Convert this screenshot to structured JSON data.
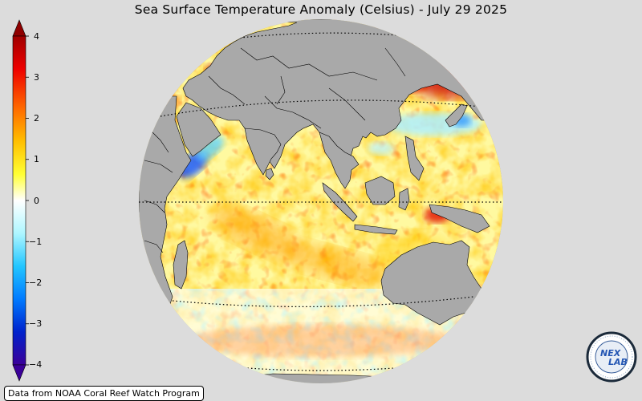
{
  "title": "Sea Surface Temperature Anomaly (Celsius) - July 29 2025",
  "colorbar": {
    "ticks": [
      "4",
      "3",
      "2",
      "1",
      "0",
      "−1",
      "−2",
      "−3",
      "−4"
    ],
    "range": [
      -4,
      4
    ],
    "colors": [
      "#3b0099",
      "#0033ff",
      "#00aaff",
      "#aaf5ff",
      "#ffffff",
      "#ffff66",
      "#ffb300",
      "#ff2200",
      "#a00000"
    ]
  },
  "map": {
    "projection": "orthographic",
    "land_color": "#a9a9a9",
    "coast_color": "#000000"
  },
  "credit": "Data from NOAA Coral Reef Watch Program",
  "logo": {
    "text": "NEX LAB"
  }
}
